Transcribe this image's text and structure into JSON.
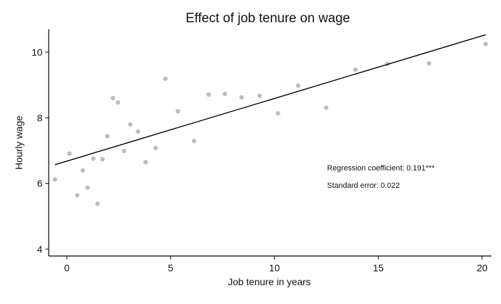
{
  "chart_data": {
    "type": "scatter",
    "title": "Effect of job tenure on wage",
    "xlabel": "Job tenure in years",
    "ylabel": "Hourly wage",
    "xlim": [
      -0.87,
      20.44
    ],
    "ylim": [
      3.79,
      10.7
    ],
    "xticks": [
      0,
      5,
      10,
      15,
      20
    ],
    "yticks": [
      4,
      6,
      8,
      10
    ],
    "grid": false,
    "point_color": "#bdbdbd",
    "line_color": "#000000",
    "points": [
      {
        "x": -0.57,
        "y": 6.12
      },
      {
        "x": 0.13,
        "y": 6.91
      },
      {
        "x": 0.5,
        "y": 5.64
      },
      {
        "x": 0.77,
        "y": 6.4
      },
      {
        "x": 1.0,
        "y": 5.87
      },
      {
        "x": 1.28,
        "y": 6.76
      },
      {
        "x": 1.48,
        "y": 5.38
      },
      {
        "x": 1.72,
        "y": 6.74
      },
      {
        "x": 1.95,
        "y": 7.44
      },
      {
        "x": 2.22,
        "y": 8.6
      },
      {
        "x": 2.46,
        "y": 8.47
      },
      {
        "x": 2.76,
        "y": 6.99
      },
      {
        "x": 3.06,
        "y": 7.8
      },
      {
        "x": 3.43,
        "y": 7.58
      },
      {
        "x": 3.8,
        "y": 6.65
      },
      {
        "x": 4.28,
        "y": 7.08
      },
      {
        "x": 4.75,
        "y": 9.19
      },
      {
        "x": 5.35,
        "y": 8.2
      },
      {
        "x": 6.13,
        "y": 7.29
      },
      {
        "x": 6.83,
        "y": 8.71
      },
      {
        "x": 7.61,
        "y": 8.73
      },
      {
        "x": 8.42,
        "y": 8.62
      },
      {
        "x": 9.29,
        "y": 8.67
      },
      {
        "x": 10.17,
        "y": 8.14
      },
      {
        "x": 11.14,
        "y": 8.98
      },
      {
        "x": 12.49,
        "y": 8.31
      },
      {
        "x": 13.9,
        "y": 9.47
      },
      {
        "x": 15.45,
        "y": 9.64
      },
      {
        "x": 17.44,
        "y": 9.66
      },
      {
        "x": 20.17,
        "y": 10.25
      }
    ],
    "fit_line": {
      "intercept": 6.68,
      "slope": 0.191,
      "x_range": [
        -0.57,
        20.17
      ]
    },
    "annotations": [
      "Regression coefficient: 0.191***",
      "Standard error: 0.022"
    ]
  }
}
